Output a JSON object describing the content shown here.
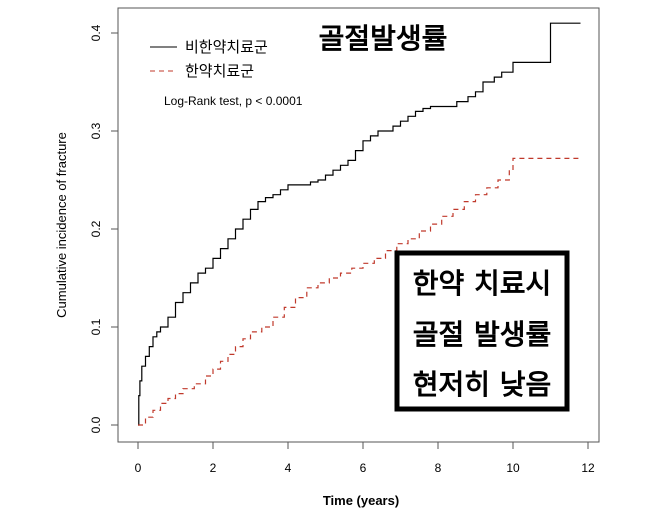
{
  "chart_data": {
    "type": "line",
    "title": "골절발생률",
    "xlabel": "Time (years)",
    "ylabel": "Cumulative incidence of fracture",
    "xlim": [
      0,
      12
    ],
    "ylim": [
      0,
      0.4
    ],
    "x_ticks": [
      "0",
      "2",
      "4",
      "6",
      "8",
      "10",
      "12"
    ],
    "y_ticks": [
      "0.0",
      "0.1",
      "0.2",
      "0.3",
      "0.4"
    ],
    "grid": false,
    "legend_position": "top-left",
    "annotation": "Log-Rank test, p < 0.0001",
    "callout_lines": [
      "한약 치료시",
      "골절 발생률",
      "현저히 낮음"
    ],
    "series": [
      {
        "name": "비한약치료군",
        "color": "#000000",
        "style": "solid",
        "x": [
          0,
          0.02,
          0.05,
          0.1,
          0.2,
          0.3,
          0.4,
          0.5,
          0.6,
          0.8,
          1.0,
          1.2,
          1.4,
          1.6,
          1.8,
          2.0,
          2.2,
          2.4,
          2.6,
          2.8,
          3.0,
          3.2,
          3.4,
          3.6,
          3.8,
          4.0,
          4.2,
          4.4,
          4.6,
          4.8,
          5.0,
          5.2,
          5.4,
          5.6,
          5.8,
          6.0,
          6.2,
          6.4,
          6.6,
          6.8,
          7.0,
          7.2,
          7.4,
          7.6,
          7.8,
          8.0,
          8.5,
          8.8,
          9.0,
          9.2,
          9.5,
          9.7,
          10.0,
          10.5,
          11.0,
          11.2,
          11.8
        ],
        "y": [
          0.0,
          0.03,
          0.045,
          0.06,
          0.07,
          0.08,
          0.09,
          0.095,
          0.1,
          0.11,
          0.125,
          0.135,
          0.145,
          0.155,
          0.16,
          0.17,
          0.18,
          0.19,
          0.2,
          0.21,
          0.22,
          0.228,
          0.232,
          0.235,
          0.24,
          0.245,
          0.245,
          0.245,
          0.248,
          0.25,
          0.255,
          0.26,
          0.265,
          0.27,
          0.28,
          0.29,
          0.295,
          0.3,
          0.3,
          0.305,
          0.31,
          0.315,
          0.32,
          0.323,
          0.325,
          0.325,
          0.33,
          0.335,
          0.34,
          0.35,
          0.355,
          0.36,
          0.37,
          0.37,
          0.41,
          0.41,
          0.41
        ]
      },
      {
        "name": "한약치료군",
        "color": "#c0392b",
        "style": "dashed",
        "x": [
          0,
          0.2,
          0.4,
          0.6,
          0.8,
          1.0,
          1.2,
          1.5,
          1.8,
          2.0,
          2.2,
          2.4,
          2.6,
          2.8,
          3.0,
          3.3,
          3.6,
          3.9,
          4.2,
          4.5,
          4.8,
          5.1,
          5.4,
          5.7,
          6.0,
          6.3,
          6.6,
          6.9,
          7.2,
          7.5,
          7.8,
          8.1,
          8.4,
          8.7,
          9.0,
          9.3,
          9.6,
          9.9,
          10.0,
          10.5,
          11.8
        ],
        "y": [
          0.0,
          0.008,
          0.015,
          0.022,
          0.027,
          0.032,
          0.037,
          0.042,
          0.05,
          0.057,
          0.065,
          0.072,
          0.08,
          0.088,
          0.095,
          0.1,
          0.11,
          0.12,
          0.13,
          0.14,
          0.145,
          0.15,
          0.155,
          0.16,
          0.165,
          0.17,
          0.178,
          0.185,
          0.19,
          0.198,
          0.205,
          0.213,
          0.22,
          0.228,
          0.235,
          0.242,
          0.25,
          0.26,
          0.272,
          0.272,
          0.272
        ]
      }
    ]
  },
  "colors": {
    "series_1": "#000000",
    "series_2": "#c0392b",
    "axis": "#555555"
  }
}
